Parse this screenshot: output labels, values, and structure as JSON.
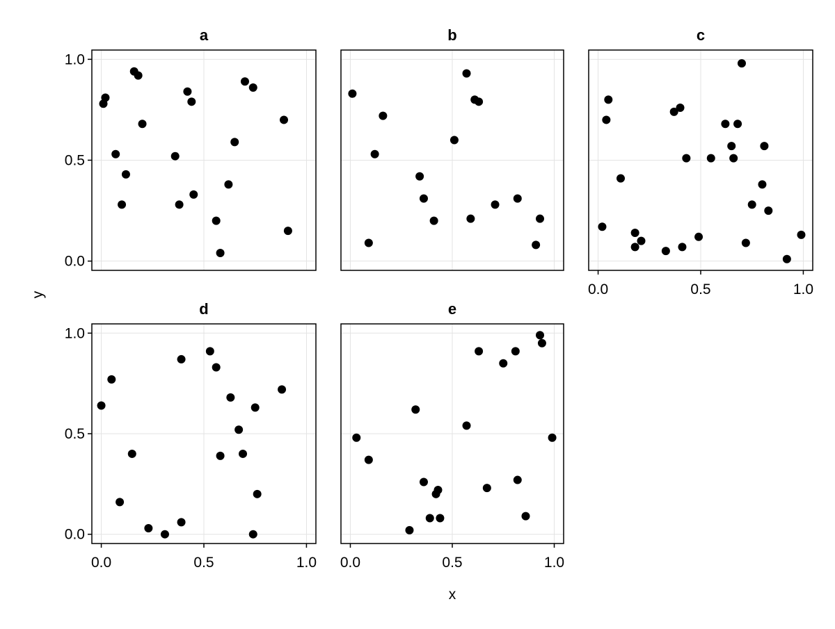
{
  "chart_data": {
    "type": "scatter",
    "xlabel": "x",
    "ylabel": "y",
    "xlim": [
      0,
      1
    ],
    "ylim": [
      0,
      1
    ],
    "xticks": [
      "0.0",
      "0.5",
      "1.0"
    ],
    "yticks": [
      "0.0",
      "0.5",
      "1.0"
    ],
    "grid": true,
    "marker_color": "#000000",
    "panels": [
      {
        "title": "a",
        "points": [
          [
            0.01,
            0.78
          ],
          [
            0.02,
            0.81
          ],
          [
            0.07,
            0.53
          ],
          [
            0.1,
            0.28
          ],
          [
            0.12,
            0.43
          ],
          [
            0.16,
            0.94
          ],
          [
            0.18,
            0.92
          ],
          [
            0.2,
            0.68
          ],
          [
            0.36,
            0.52
          ],
          [
            0.38,
            0.28
          ],
          [
            0.42,
            0.84
          ],
          [
            0.44,
            0.79
          ],
          [
            0.45,
            0.33
          ],
          [
            0.56,
            0.2
          ],
          [
            0.58,
            0.04
          ],
          [
            0.62,
            0.38
          ],
          [
            0.65,
            0.59
          ],
          [
            0.7,
            0.89
          ],
          [
            0.74,
            0.86
          ],
          [
            0.89,
            0.7
          ],
          [
            0.91,
            0.15
          ]
        ]
      },
      {
        "title": "b",
        "points": [
          [
            0.01,
            0.83
          ],
          [
            0.09,
            0.09
          ],
          [
            0.12,
            0.53
          ],
          [
            0.16,
            0.72
          ],
          [
            0.34,
            0.42
          ],
          [
            0.36,
            0.31
          ],
          [
            0.41,
            0.2
          ],
          [
            0.51,
            0.6
          ],
          [
            0.57,
            0.93
          ],
          [
            0.59,
            0.21
          ],
          [
            0.61,
            0.8
          ],
          [
            0.63,
            0.79
          ],
          [
            0.71,
            0.28
          ],
          [
            0.82,
            0.31
          ],
          [
            0.91,
            0.08
          ],
          [
            0.93,
            0.21
          ]
        ]
      },
      {
        "title": "c",
        "points": [
          [
            0.02,
            0.17
          ],
          [
            0.04,
            0.7
          ],
          [
            0.05,
            0.8
          ],
          [
            0.11,
            0.41
          ],
          [
            0.18,
            0.14
          ],
          [
            0.18,
            0.07
          ],
          [
            0.21,
            0.1
          ],
          [
            0.33,
            0.05
          ],
          [
            0.37,
            0.74
          ],
          [
            0.4,
            0.76
          ],
          [
            0.41,
            0.07
          ],
          [
            0.43,
            0.51
          ],
          [
            0.49,
            0.12
          ],
          [
            0.55,
            0.51
          ],
          [
            0.62,
            0.68
          ],
          [
            0.65,
            0.57
          ],
          [
            0.66,
            0.51
          ],
          [
            0.68,
            0.68
          ],
          [
            0.7,
            0.98
          ],
          [
            0.72,
            0.09
          ],
          [
            0.75,
            0.28
          ],
          [
            0.81,
            0.57
          ],
          [
            0.8,
            0.38
          ],
          [
            0.83,
            0.25
          ],
          [
            0.92,
            0.01
          ],
          [
            0.99,
            0.13
          ]
        ]
      },
      {
        "title": "d",
        "points": [
          [
            0.0,
            0.64
          ],
          [
            0.05,
            0.77
          ],
          [
            0.09,
            0.16
          ],
          [
            0.15,
            0.4
          ],
          [
            0.23,
            0.03
          ],
          [
            0.31,
            0.0
          ],
          [
            0.39,
            0.06
          ],
          [
            0.39,
            0.87
          ],
          [
            0.53,
            0.91
          ],
          [
            0.56,
            0.83
          ],
          [
            0.58,
            0.39
          ],
          [
            0.63,
            0.68
          ],
          [
            0.67,
            0.52
          ],
          [
            0.69,
            0.4
          ],
          [
            0.74,
            0.0
          ],
          [
            0.75,
            0.63
          ],
          [
            0.76,
            0.2
          ],
          [
            0.88,
            0.72
          ]
        ]
      },
      {
        "title": "e",
        "points": [
          [
            0.03,
            0.48
          ],
          [
            0.09,
            0.37
          ],
          [
            0.29,
            0.02
          ],
          [
            0.32,
            0.62
          ],
          [
            0.36,
            0.26
          ],
          [
            0.39,
            0.08
          ],
          [
            0.42,
            0.2
          ],
          [
            0.43,
            0.22
          ],
          [
            0.44,
            0.08
          ],
          [
            0.57,
            0.54
          ],
          [
            0.63,
            0.91
          ],
          [
            0.67,
            0.23
          ],
          [
            0.75,
            0.85
          ],
          [
            0.81,
            0.91
          ],
          [
            0.82,
            0.27
          ],
          [
            0.86,
            0.09
          ],
          [
            0.93,
            0.99
          ],
          [
            0.94,
            0.95
          ],
          [
            0.99,
            0.48
          ]
        ]
      }
    ]
  }
}
